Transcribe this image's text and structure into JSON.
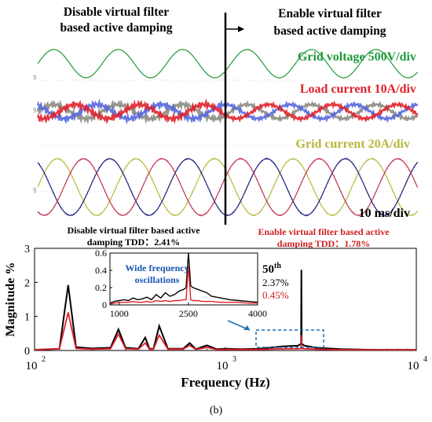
{
  "top_panel": {
    "left_heading_line1": "Disable virtual filter",
    "left_heading_line2": "based active damping",
    "right_heading_line1": "Enable virtual filter",
    "right_heading_line2": "based active damping",
    "grid_voltage_label": "Grid voltage 500V/div",
    "load_current_label": "Load current 10A/div",
    "grid_current_label": "Grid current 20A/div",
    "time_scale_label": "10 ms/div",
    "colors": {
      "grid_voltage": "#1f9a3a",
      "load_current_a": "#e0202a",
      "load_current_b": "#5566dd",
      "load_current_c": "#8a8a80",
      "grid_current_a": "#b8b83a",
      "grid_current_b": "#1a1a7a",
      "grid_current_c": "#c03050",
      "divider": "#000000"
    }
  },
  "tdd_annotations": {
    "disabled_line1": "Disable virtual filter based active",
    "disabled_line2": "damping TDD：2.41%",
    "enabled_line1": "Enable virtual filter based active",
    "enabled_line2": "damping TDD：1.78%"
  },
  "harmonic_annotation": {
    "order": "50",
    "suffix": "th",
    "disabled_value": "2.37%",
    "enabled_value": "0.45%"
  },
  "inset_label_line1": "Wide frequency",
  "inset_label_line2": "oscillations",
  "caption": "(b)",
  "chart_data": [
    {
      "type": "line",
      "title": "",
      "xlabel": "Frequency (Hz)",
      "ylabel": "Magnitude %",
      "xscale": "log",
      "xlim": [
        100,
        10000
      ],
      "ylim": [
        0,
        3
      ],
      "xticks": [
        100,
        1000,
        10000
      ],
      "xtick_labels": [
        "10",
        "10",
        "10"
      ],
      "xtick_exponents": [
        "2",
        "3",
        "4"
      ],
      "yticks": [
        0,
        1,
        2,
        3
      ],
      "ytick_labels": [
        "0",
        "1",
        "2",
        "3"
      ],
      "grid": false,
      "series": [
        {
          "color": "#000000",
          "x": [
            100,
            135,
            150,
            165,
            200,
            250,
            275,
            300,
            350,
            380,
            400,
            420,
            450,
            500,
            550,
            600,
            650,
            700,
            800,
            900,
            1000,
            1200,
            1500,
            2000,
            2400,
            2490,
            2500,
            2510,
            2600,
            3000,
            4000,
            6000,
            10000
          ],
          "y": [
            0.02,
            0.05,
            1.92,
            0.1,
            0.06,
            0.08,
            0.62,
            0.08,
            0.05,
            0.38,
            0.05,
            0.05,
            0.72,
            0.05,
            0.05,
            0.05,
            0.22,
            0.04,
            0.15,
            0.04,
            0.05,
            0.04,
            0.05,
            0.12,
            0.14,
            0.2,
            2.37,
            0.2,
            0.14,
            0.08,
            0.04,
            0.02,
            0.02
          ]
        },
        {
          "color": "#e0202a",
          "x": [
            100,
            135,
            150,
            165,
            200,
            250,
            275,
            300,
            350,
            380,
            400,
            420,
            450,
            500,
            550,
            600,
            650,
            700,
            800,
            900,
            1000,
            1200,
            1500,
            2000,
            2400,
            2490,
            2500,
            2510,
            2600,
            3000,
            4000,
            6000,
            10000
          ],
          "y": [
            0.02,
            0.05,
            1.12,
            0.06,
            0.04,
            0.05,
            0.48,
            0.05,
            0.04,
            0.22,
            0.04,
            0.04,
            0.45,
            0.04,
            0.04,
            0.04,
            0.15,
            0.03,
            0.09,
            0.03,
            0.03,
            0.03,
            0.03,
            0.05,
            0.05,
            0.06,
            0.45,
            0.06,
            0.05,
            0.04,
            0.02,
            0.02,
            0.02
          ]
        }
      ]
    },
    {
      "type": "line",
      "title": "",
      "xlabel": "",
      "ylabel": "",
      "xlim": [
        800,
        4000
      ],
      "ylim": [
        0,
        0.6
      ],
      "xticks": [
        1000,
        2500,
        4000
      ],
      "xtick_labels": [
        "1000",
        "2500",
        "4000"
      ],
      "yticks": [
        0,
        0.2,
        0.4,
        0.6
      ],
      "ytick_labels": [
        "0",
        "0.2",
        "0.4",
        "0.6"
      ],
      "grid": false,
      "series": [
        {
          "color": "#000000",
          "x": [
            800,
            900,
            1000,
            1100,
            1200,
            1300,
            1400,
            1500,
            1600,
            1700,
            1800,
            1900,
            2000,
            2100,
            2200,
            2300,
            2400,
            2450,
            2500,
            2550,
            2600,
            2700,
            2800,
            2900,
            3000,
            3200,
            3400,
            3600,
            3800,
            4000
          ],
          "y": [
            0.02,
            0.04,
            0.05,
            0.06,
            0.05,
            0.08,
            0.06,
            0.07,
            0.09,
            0.06,
            0.12,
            0.08,
            0.14,
            0.1,
            0.12,
            0.16,
            0.18,
            0.2,
            0.6,
            0.22,
            0.2,
            0.18,
            0.16,
            0.14,
            0.1,
            0.08,
            0.06,
            0.05,
            0.04,
            0.03
          ]
        },
        {
          "color": "#e0202a",
          "x": [
            800,
            900,
            1000,
            1100,
            1200,
            1300,
            1400,
            1500,
            1600,
            1700,
            1800,
            1900,
            2000,
            2100,
            2200,
            2300,
            2400,
            2450,
            2500,
            2550,
            2600,
            2700,
            2800,
            2900,
            3000,
            3200,
            3400,
            3600,
            3800,
            4000
          ],
          "y": [
            0.01,
            0.02,
            0.03,
            0.03,
            0.03,
            0.04,
            0.03,
            0.03,
            0.04,
            0.03,
            0.05,
            0.04,
            0.05,
            0.04,
            0.05,
            0.05,
            0.06,
            0.06,
            0.45,
            0.06,
            0.05,
            0.05,
            0.04,
            0.04,
            0.04,
            0.03,
            0.03,
            0.03,
            0.02,
            0.02
          ]
        }
      ]
    }
  ]
}
